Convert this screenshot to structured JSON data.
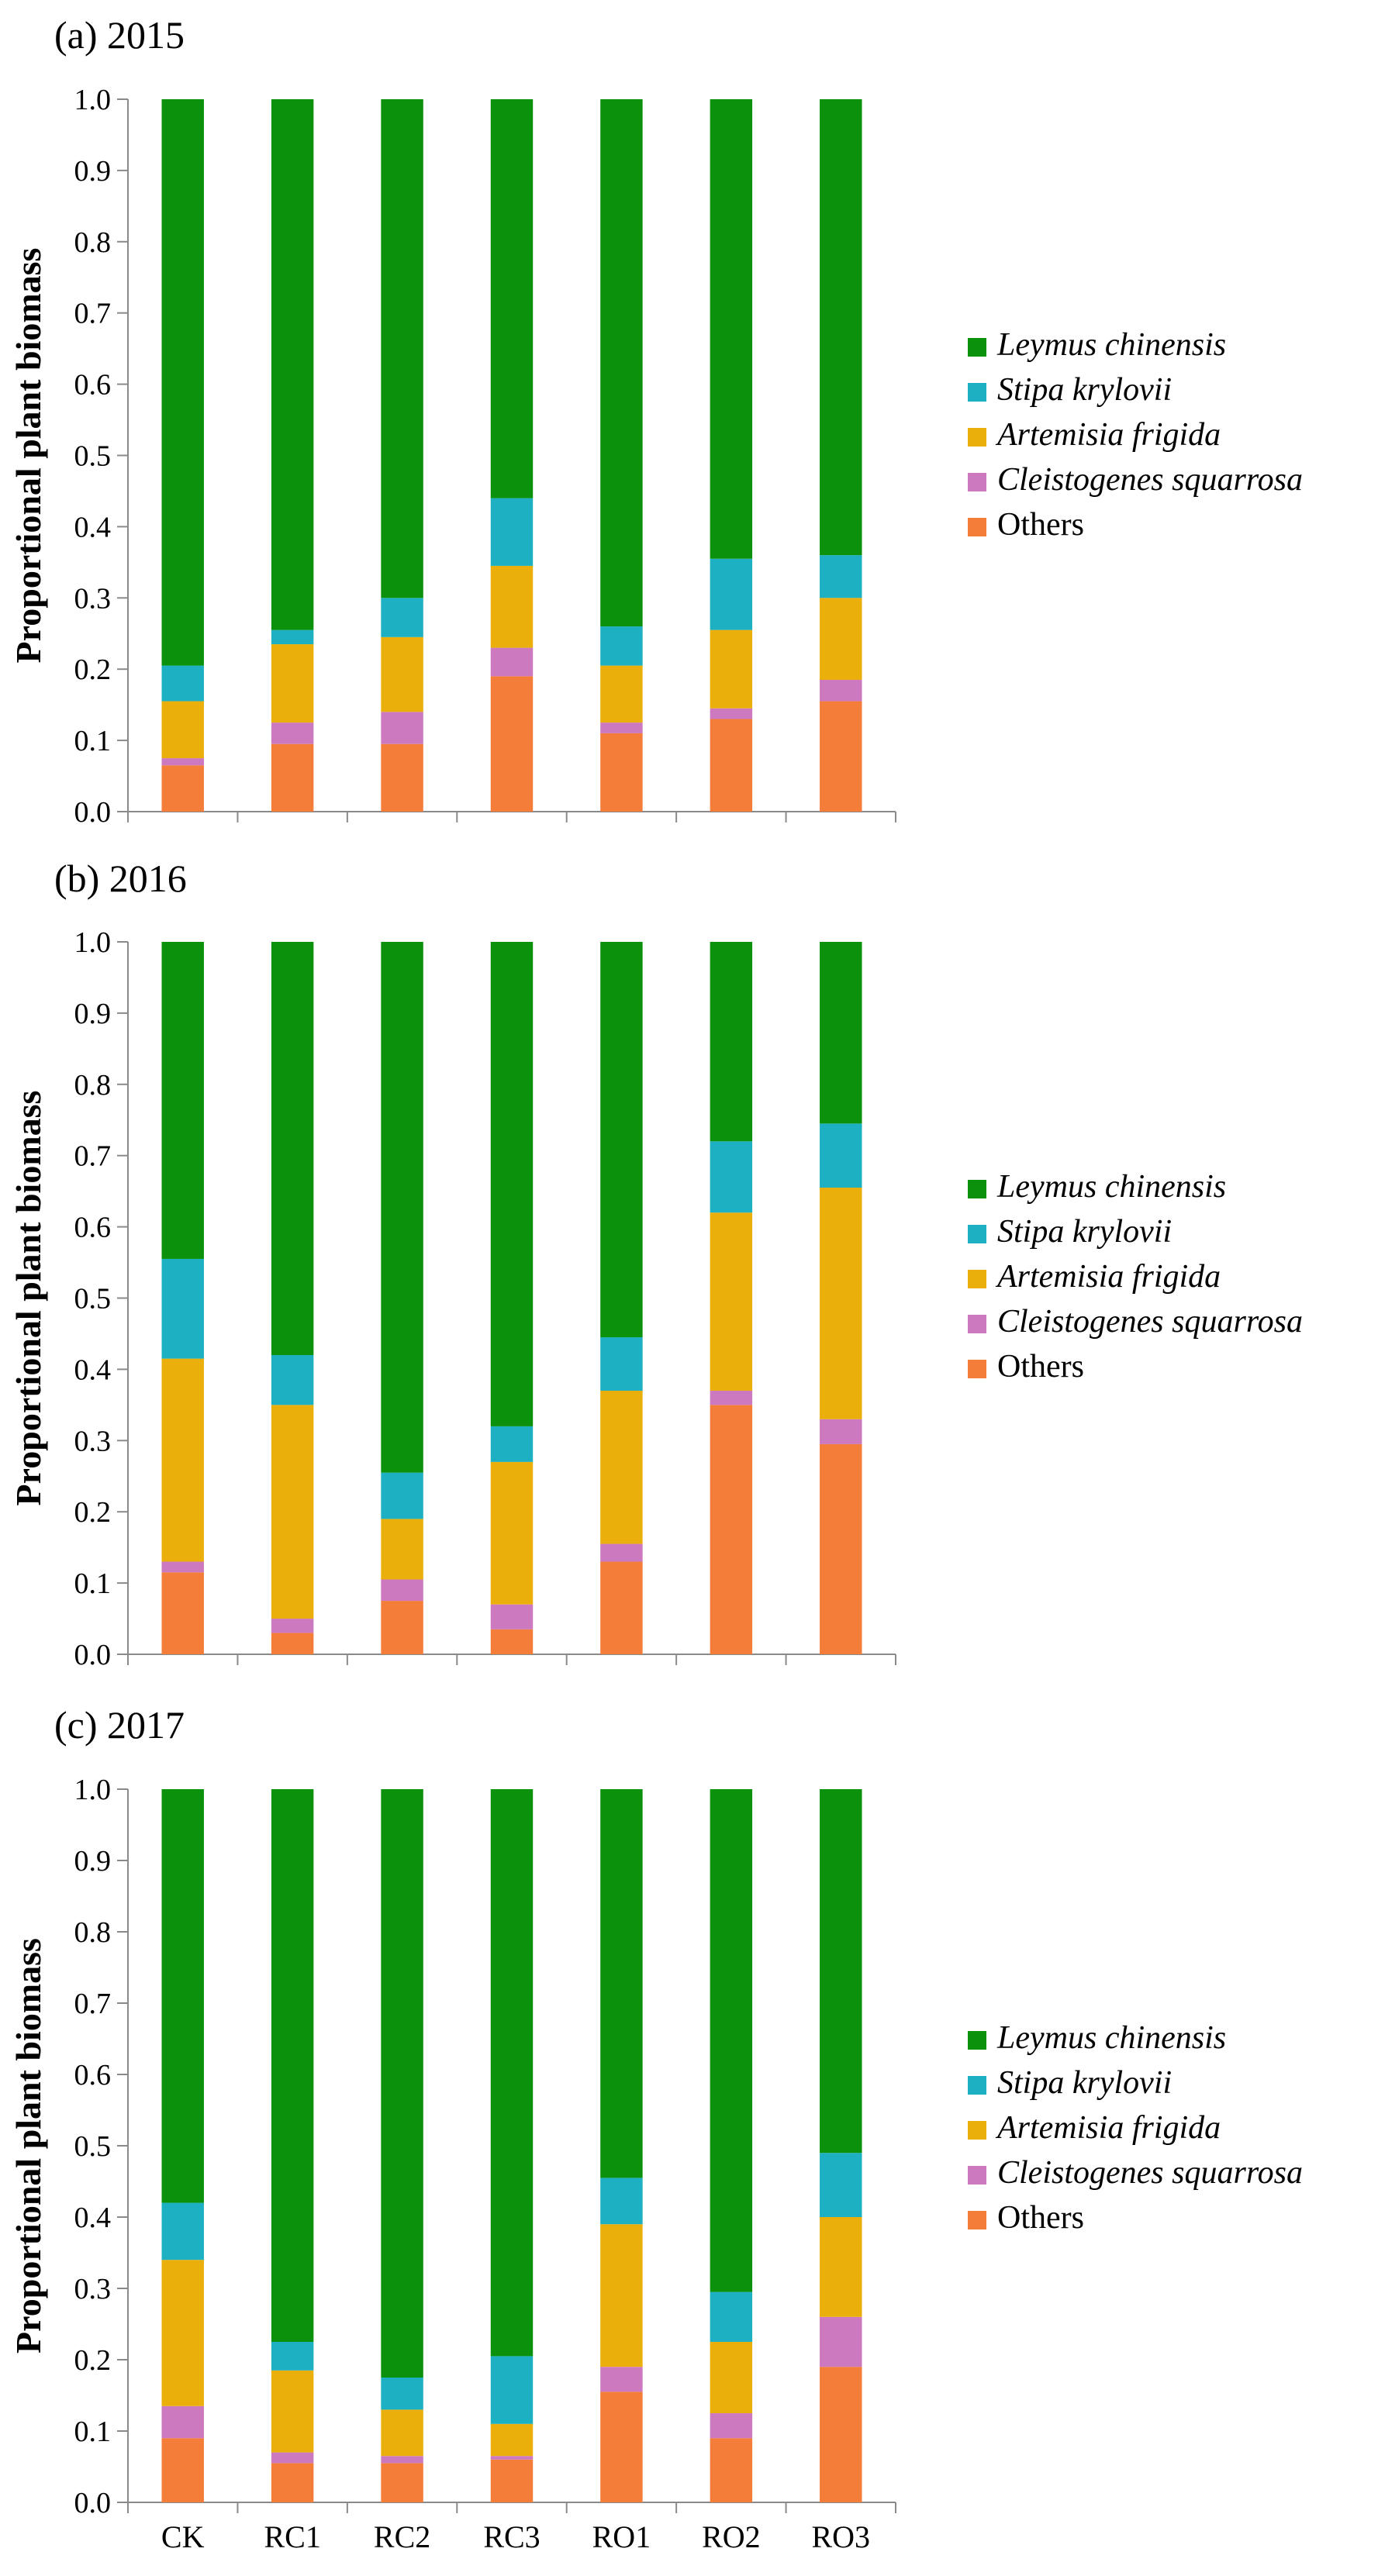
{
  "chart_data": [
    {
      "type": "bar",
      "stacked": true,
      "title": "(a) 2015",
      "xlabel": "",
      "ylabel": "Proportional plant biomass",
      "ylim": [
        0,
        1.0
      ],
      "yticks": [
        "0.0",
        "0.1",
        "0.2",
        "0.3",
        "0.4",
        "0.5",
        "0.6",
        "0.7",
        "0.8",
        "0.9",
        "1.0"
      ],
      "categories": [
        "CK",
        "RC1",
        "RC2",
        "RC3",
        "RO1",
        "RO2",
        "RO3"
      ],
      "show_categories": false,
      "series": [
        {
          "name": "Others",
          "italic": false,
          "color": "#F47D3A",
          "values": [
            0.065,
            0.095,
            0.095,
            0.19,
            0.11,
            0.13,
            0.155
          ]
        },
        {
          "name": "Cleistogenes squarrosa",
          "italic": true,
          "color": "#CC79C0",
          "values": [
            0.01,
            0.03,
            0.045,
            0.04,
            0.015,
            0.015,
            0.03
          ]
        },
        {
          "name": "Artemisia frigida",
          "italic": true,
          "color": "#EBAF0B",
          "values": [
            0.08,
            0.11,
            0.105,
            0.115,
            0.08,
            0.11,
            0.115
          ]
        },
        {
          "name": "Stipa krylovii",
          "italic": true,
          "color": "#1DB0C2",
          "values": [
            0.05,
            0.02,
            0.055,
            0.095,
            0.055,
            0.1,
            0.06
          ]
        },
        {
          "name": "Leymus chinensis",
          "italic": true,
          "color": "#0C910C",
          "values": [
            0.795,
            0.745,
            0.7,
            0.56,
            0.74,
            0.645,
            0.64
          ]
        }
      ]
    },
    {
      "type": "bar",
      "stacked": true,
      "title": "(b) 2016",
      "xlabel": "",
      "ylabel": "Proportional plant biomass",
      "ylim": [
        0,
        1.0
      ],
      "yticks": [
        "0.0",
        "0.1",
        "0.2",
        "0.3",
        "0.4",
        "0.5",
        "0.6",
        "0.7",
        "0.8",
        "0.9",
        "1.0"
      ],
      "categories": [
        "CK",
        "RC1",
        "RC2",
        "RC3",
        "RO1",
        "RO2",
        "RO3"
      ],
      "show_categories": false,
      "series": [
        {
          "name": "Others",
          "italic": false,
          "color": "#F47D3A",
          "values": [
            0.115,
            0.03,
            0.075,
            0.035,
            0.13,
            0.35,
            0.295
          ]
        },
        {
          "name": "Cleistogenes squarrosa",
          "italic": true,
          "color": "#CC79C0",
          "values": [
            0.015,
            0.02,
            0.03,
            0.035,
            0.025,
            0.02,
            0.035
          ]
        },
        {
          "name": "Artemisia frigida",
          "italic": true,
          "color": "#EBAF0B",
          "values": [
            0.285,
            0.3,
            0.085,
            0.2,
            0.215,
            0.25,
            0.325
          ]
        },
        {
          "name": "Stipa krylovii",
          "italic": true,
          "color": "#1DB0C2",
          "values": [
            0.14,
            0.07,
            0.065,
            0.05,
            0.075,
            0.1,
            0.09
          ]
        },
        {
          "name": "Leymus chinensis",
          "italic": true,
          "color": "#0C910C",
          "values": [
            0.445,
            0.58,
            0.745,
            0.68,
            0.555,
            0.28,
            0.255
          ]
        }
      ]
    },
    {
      "type": "bar",
      "stacked": true,
      "title": "(c) 2017",
      "xlabel": "",
      "ylabel": "Proportional plant biomass",
      "ylim": [
        0,
        1.0
      ],
      "yticks": [
        "0.0",
        "0.1",
        "0.2",
        "0.3",
        "0.4",
        "0.5",
        "0.6",
        "0.7",
        "0.8",
        "0.9",
        "1.0"
      ],
      "categories": [
        "CK",
        "RC1",
        "RC2",
        "RC3",
        "RO1",
        "RO2",
        "RO3"
      ],
      "show_categories": true,
      "series": [
        {
          "name": "Others",
          "italic": false,
          "color": "#F47D3A",
          "values": [
            0.09,
            0.055,
            0.055,
            0.06,
            0.155,
            0.09,
            0.19
          ]
        },
        {
          "name": "Cleistogenes squarrosa",
          "italic": true,
          "color": "#CC79C0",
          "values": [
            0.045,
            0.015,
            0.01,
            0.005,
            0.035,
            0.035,
            0.07
          ]
        },
        {
          "name": "Artemisia frigida",
          "italic": true,
          "color": "#EBAF0B",
          "values": [
            0.205,
            0.115,
            0.065,
            0.045,
            0.2,
            0.1,
            0.14
          ]
        },
        {
          "name": "Stipa krylovii",
          "italic": true,
          "color": "#1DB0C2",
          "values": [
            0.08,
            0.04,
            0.045,
            0.095,
            0.065,
            0.07,
            0.09
          ]
        },
        {
          "name": "Leymus chinensis",
          "italic": true,
          "color": "#0C910C",
          "values": [
            0.58,
            0.775,
            0.825,
            0.795,
            0.545,
            0.705,
            0.51
          ]
        }
      ]
    }
  ],
  "legend_order": [
    "Leymus chinensis",
    "Stipa krylovii",
    "Artemisia frigida",
    "Cleistogenes squarrosa",
    "Others"
  ]
}
